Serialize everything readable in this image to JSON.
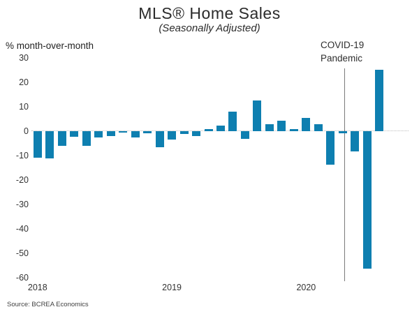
{
  "header": {
    "title": "MLS® Home Sales",
    "subtitle": "(Seasonally Adjusted)"
  },
  "annotation": {
    "line1": "COVID-19",
    "line2": "Pandemic"
  },
  "source": "Source: BCREA Economics",
  "colors": {
    "bar": "#0e7fb0",
    "zero_line": "#bdbdbd",
    "event_line": "#7a7a7a"
  },
  "chart_data": {
    "type": "bar",
    "title": "MLS® Home Sales",
    "subtitle": "(Seasonally Adjusted)",
    "ylabel": "% month-over-month",
    "xlabel": "",
    "ylim": [
      -60,
      30
    ],
    "yticks": [
      30,
      20,
      10,
      0,
      -10,
      -20,
      -30,
      -40,
      -50,
      -60
    ],
    "grid": "zero-line-only-dotted",
    "x_unit": "month",
    "xticks": [
      {
        "label": "2018",
        "bar_index": 0
      },
      {
        "label": "2019",
        "bar_index": 11
      },
      {
        "label": "2020",
        "bar_index": 22
      }
    ],
    "values": [
      -10.9,
      -11.2,
      -6.1,
      -2.5,
      -6.1,
      -2.7,
      -2.1,
      -0.6,
      -2.6,
      -0.9,
      -6.6,
      -3.5,
      -1.3,
      -2.2,
      0.7,
      2.3,
      8.0,
      -3.1,
      12.4,
      2.7,
      4.3,
      0.7,
      5.4,
      2.7,
      -13.9,
      -1.0,
      -8.4,
      -56.3,
      25.1
    ],
    "event_line": {
      "label": "COVID-19 Pandemic",
      "between_bar_indices": [
        25,
        26
      ]
    },
    "legend": "none"
  }
}
